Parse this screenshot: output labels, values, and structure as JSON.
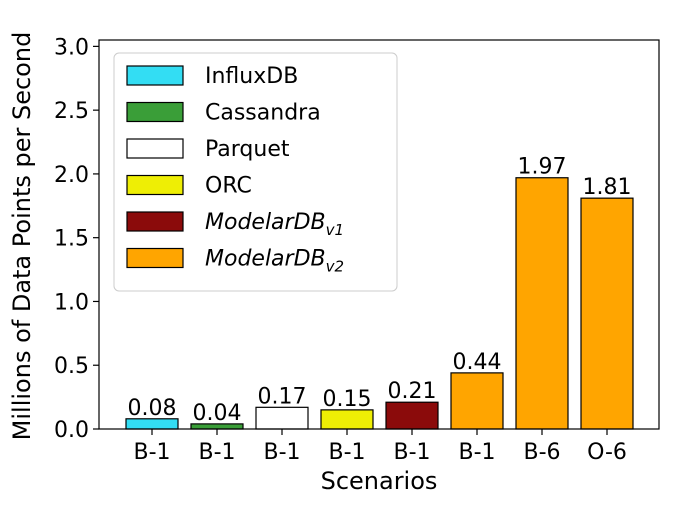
{
  "chart_data": {
    "type": "bar",
    "xlabel": "Scenarios",
    "ylabel": "Millions of Data Points per Second",
    "ylim": [
      0,
      3.05
    ],
    "yticks": [
      "0.0",
      "0.5",
      "1.0",
      "1.5",
      "2.0",
      "2.5",
      "3.0"
    ],
    "ytick_values": [
      0,
      0.5,
      1.0,
      1.5,
      2.0,
      2.5,
      3.0
    ],
    "categories": [
      "B-1",
      "B-1",
      "B-1",
      "B-1",
      "B-1",
      "B-1",
      "B-6",
      "O-6"
    ],
    "values": [
      0.08,
      0.04,
      0.17,
      0.15,
      0.21,
      0.44,
      1.97,
      1.81
    ],
    "value_labels": [
      "0.08",
      "0.04",
      "0.17",
      "0.15",
      "0.21",
      "0.44",
      "1.97",
      "1.81"
    ],
    "bar_colors": [
      "#33ddf3",
      "#3a9e38",
      "#ffffff",
      "#eeee05",
      "#8b0b0b",
      "#ffa500",
      "#ffa500",
      "#ffa500"
    ],
    "legend_position": "top-left",
    "legend": [
      {
        "name": "InfluxDB",
        "color": "#33ddf3"
      },
      {
        "name": "Cassandra",
        "color": "#3a9e38"
      },
      {
        "name": "Parquet",
        "color": "#ffffff"
      },
      {
        "name": "ORC",
        "color": "#eeee05"
      },
      {
        "name": "ModelarDB",
        "subscript": "v1",
        "italic": true,
        "color": "#8b0b0b"
      },
      {
        "name": "ModelarDB",
        "subscript": "v2",
        "italic": true,
        "color": "#ffa500"
      }
    ],
    "grid": false
  }
}
